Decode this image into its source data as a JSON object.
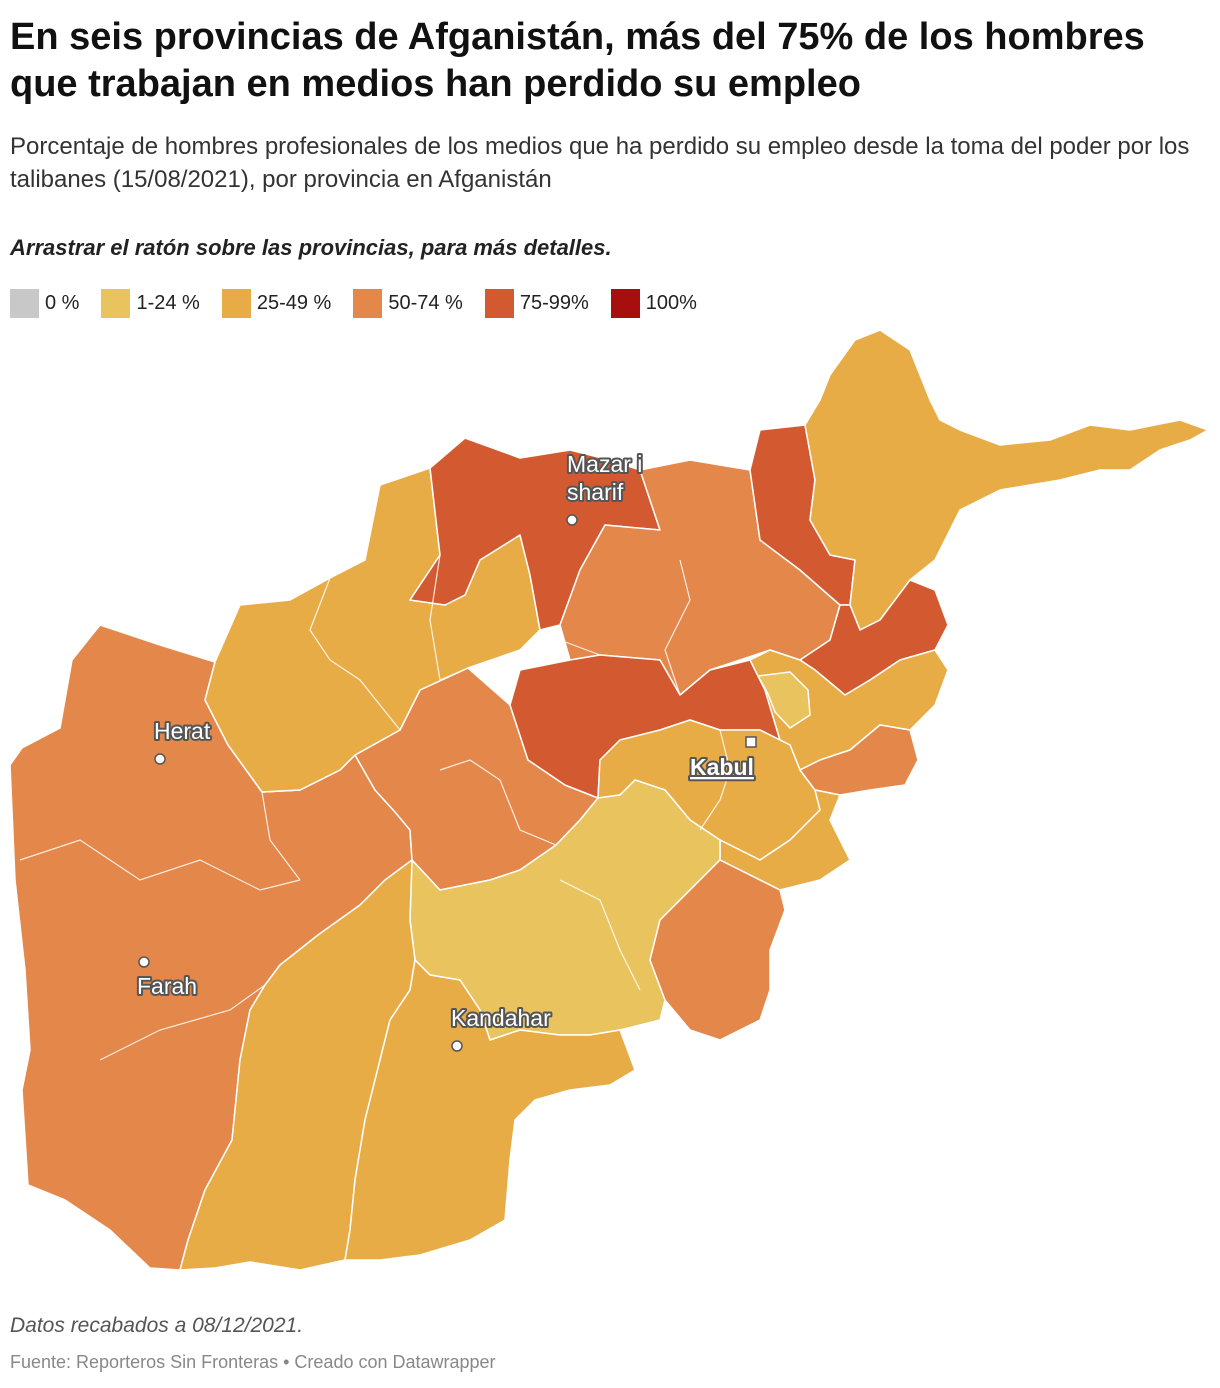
{
  "title": "En seis provincias de Afganistán, más del 75% de los hombres que trabajan en medios han perdido su empleo",
  "subtitle": "Porcentaje de hombres profesionales de los medios que ha perdido su empleo desde la toma del poder por los talibanes (15/08/2021), por provincia en Afganistán",
  "instruction": "Arrastrar el ratón sobre las provincias, para más detalles.",
  "legend": [
    {
      "label": "0 %",
      "color": "#c8c8c8"
    },
    {
      "label": "1-24 %",
      "color": "#e8c35e"
    },
    {
      "label": "25-49 %",
      "color": "#e8ac46"
    },
    {
      "label": "50-74 %",
      "color": "#e4874a"
    },
    {
      "label": "75-99%",
      "color": "#d35a30"
    },
    {
      "label": "100%",
      "color": "#a70f0f"
    }
  ],
  "cities": {
    "mazar_line1": "Mazar i",
    "mazar_line2": "sharif",
    "herat": "Herat",
    "kabul": "Kabul",
    "farah": "Farah",
    "kandahar": "Kandahar"
  },
  "note": "Datos recabados a 08/12/2021.",
  "source": "Fuente: Reporteros Sin Fronteras • Creado con Datawrapper"
}
